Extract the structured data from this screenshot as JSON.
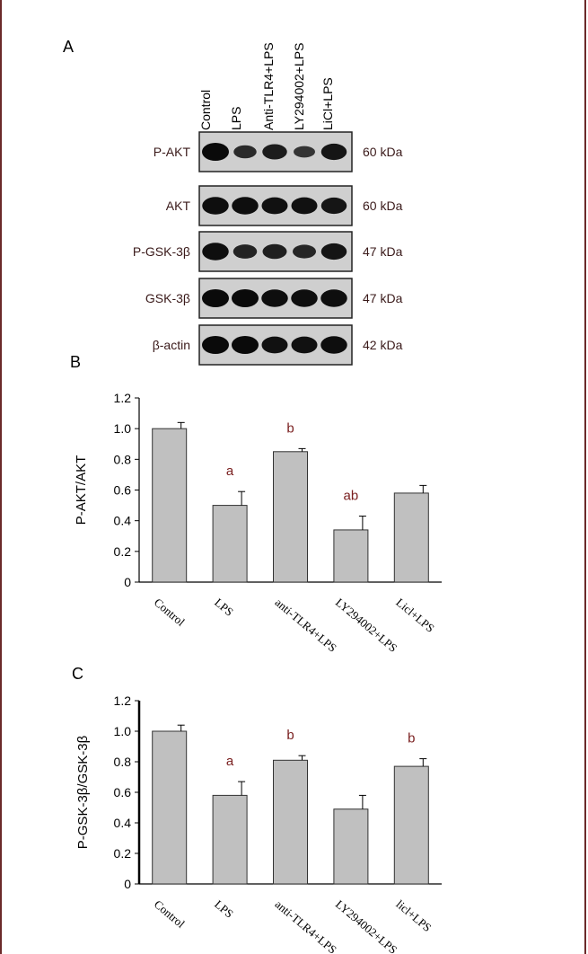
{
  "panels": {
    "a_label": "A",
    "b_label": "B",
    "c_label": "C"
  },
  "blot": {
    "lanes": [
      "Control",
      "LPS",
      "Anti-TLR4+LPS",
      "LY294002+LPS",
      "LiCl+LPS"
    ],
    "rows": [
      {
        "name": "P-AKT",
        "kda": "60 kDa",
        "intensity": [
          1.0,
          0.55,
          0.75,
          0.4,
          0.85
        ]
      },
      {
        "name": "AKT",
        "kda": "60 kDa",
        "intensity": [
          0.95,
          0.95,
          0.9,
          0.9,
          0.85
        ]
      },
      {
        "name": "P-GSK-3β",
        "kda": "47 kDa",
        "intensity": [
          0.95,
          0.65,
          0.7,
          0.6,
          0.85
        ]
      },
      {
        "name": "GSK-3β",
        "kda": "47 kDa",
        "intensity": [
          1.0,
          1.0,
          0.95,
          0.95,
          0.95
        ]
      },
      {
        "name": "β-actin",
        "kda": "42 kDa",
        "intensity": [
          1.0,
          1.0,
          0.9,
          0.9,
          0.95
        ]
      }
    ]
  },
  "chart_data": [
    {
      "type": "bar",
      "categories": [
        "Control",
        "LPS",
        "anti-TLR4+LPS",
        "LY294002+LPS",
        "Licl+LPS"
      ],
      "values": [
        1.0,
        0.5,
        0.85,
        0.34,
        0.58
      ],
      "errors": [
        0.04,
        0.09,
        0.02,
        0.09,
        0.05
      ],
      "annotations": [
        "",
        "a",
        "b",
        "ab",
        ""
      ],
      "ylabel": "P-AKT/AKT",
      "yticks": [
        "0",
        "0.2",
        "0.4",
        "0.6",
        "0.8",
        "1.0",
        "1.2"
      ],
      "ylim": [
        0,
        1.2
      ],
      "bar_color": "#c0c0c0",
      "annotation_color": "#7a2020"
    },
    {
      "type": "bar",
      "categories": [
        "Control",
        "LPS",
        "anti-TLR4+LPS",
        "LY294002+LPS",
        "licl+LPS"
      ],
      "values": [
        1.0,
        0.58,
        0.81,
        0.49,
        0.77
      ],
      "errors": [
        0.04,
        0.09,
        0.03,
        0.09,
        0.05
      ],
      "annotations": [
        "",
        "a",
        "b",
        "",
        "b"
      ],
      "ylabel": "P-GSK-3β/GSK-3β",
      "yticks": [
        "0",
        "0.2",
        "0.4",
        "0.6",
        "0.8",
        "1.0",
        "1.2"
      ],
      "ylim": [
        0,
        1.2
      ],
      "bar_color": "#c0c0c0",
      "annotation_color": "#7a2020"
    }
  ]
}
